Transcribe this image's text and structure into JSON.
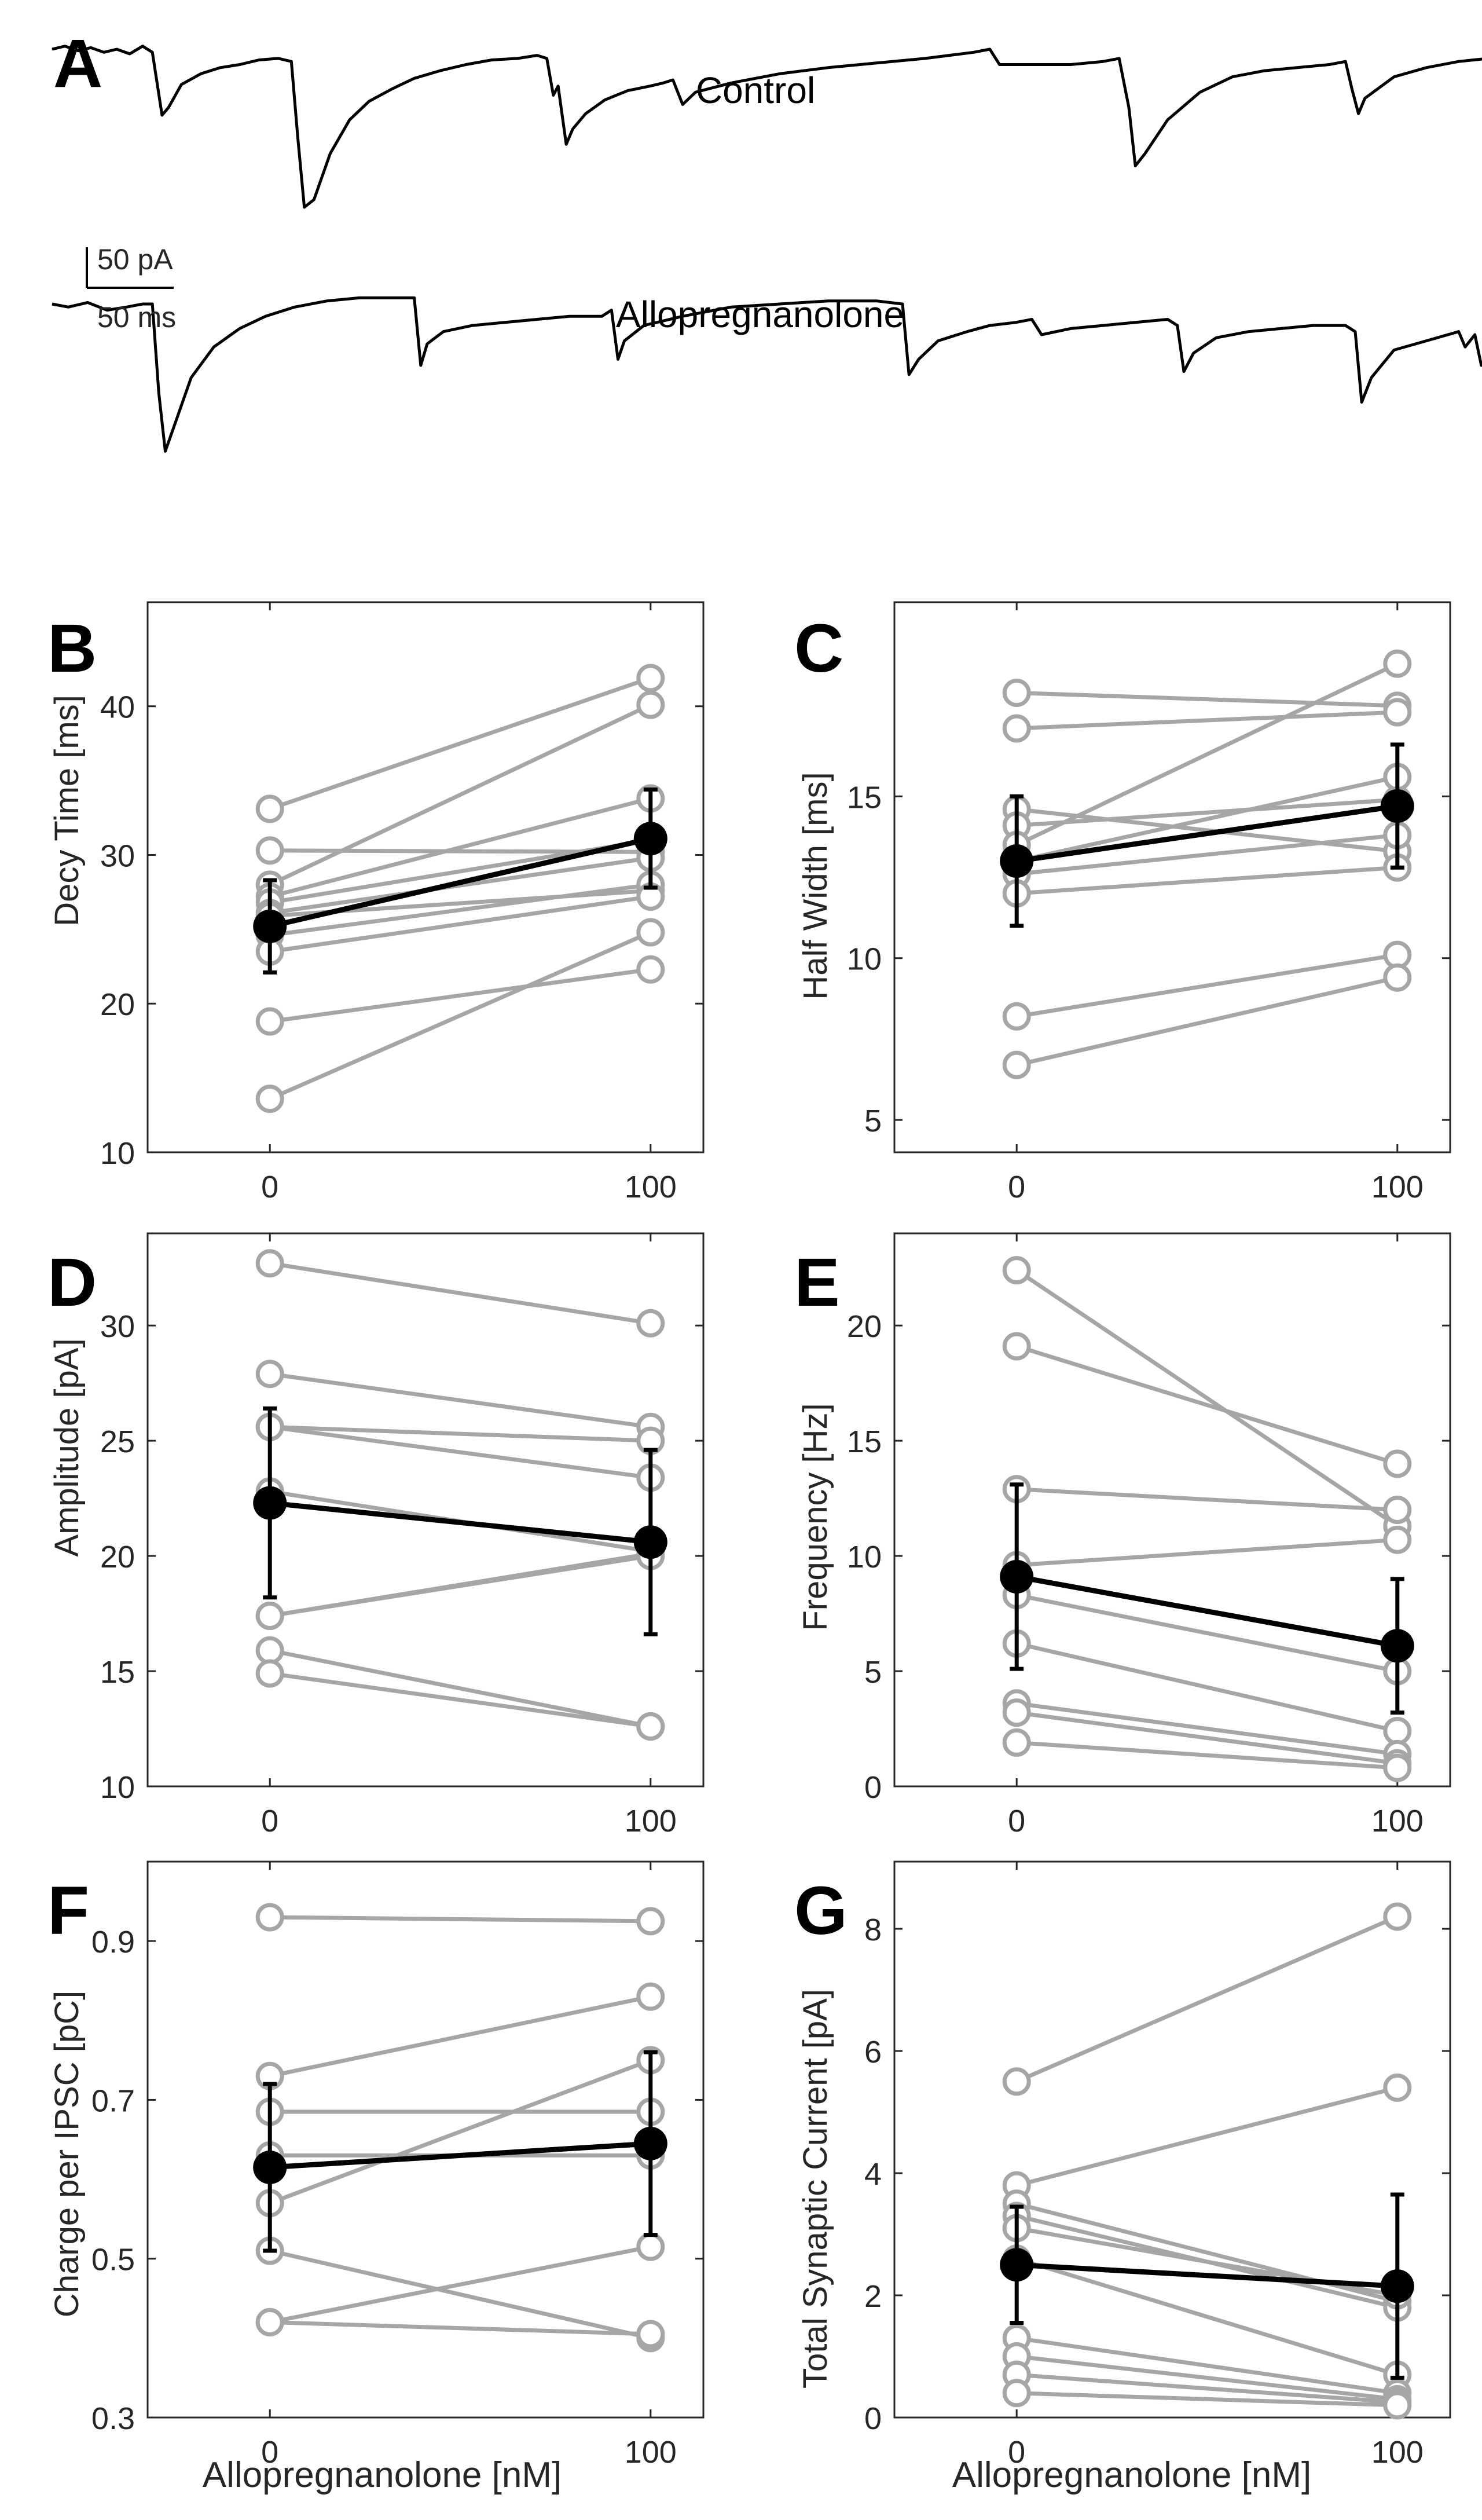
{
  "chart_data": [
    {
      "panel": "A",
      "type": "line",
      "traces": [
        {
          "name": "Control",
          "points": [
            [
              0,
              82
            ],
            [
              8,
              80
            ],
            [
              16,
              83
            ],
            [
              24,
              81
            ],
            [
              32,
              84
            ],
            [
              40,
              82
            ],
            [
              48,
              85
            ],
            [
              56,
              80
            ],
            [
              62,
              84
            ],
            [
              68,
              125
            ],
            [
              72,
              120
            ],
            [
              80,
              105
            ],
            [
              92,
              98
            ],
            [
              104,
              94
            ],
            [
              116,
              92
            ],
            [
              128,
              89
            ],
            [
              140,
              88
            ],
            [
              148,
              90
            ],
            [
              152,
              140
            ],
            [
              156,
              185
            ],
            [
              162,
              180
            ],
            [
              172,
              150
            ],
            [
              184,
              128
            ],
            [
              196,
              116
            ],
            [
              210,
              108
            ],
            [
              224,
              101
            ],
            [
              240,
              96
            ],
            [
              256,
              92
            ],
            [
              272,
              89
            ],
            [
              288,
              88
            ],
            [
              300,
              86
            ],
            [
              306,
              88
            ],
            [
              310,
              112
            ],
            [
              313,
              106
            ],
            [
              318,
              144
            ],
            [
              322,
              134
            ],
            [
              330,
              124
            ],
            [
              342,
              115
            ],
            [
              356,
              109
            ],
            [
              370,
              106
            ],
            [
              378,
              104
            ],
            [
              384,
              102
            ],
            [
              390,
              118
            ],
            [
              398,
              110
            ],
            [
              420,
              104
            ],
            [
              450,
              98
            ],
            [
              480,
              94
            ],
            [
              510,
              91
            ],
            [
              540,
              88
            ],
            [
              570,
              84
            ],
            [
              580,
              82
            ],
            [
              586,
              92
            ],
            [
              600,
              92
            ],
            [
              630,
              92
            ],
            [
              650,
              90
            ],
            [
              660,
              88
            ],
            [
              666,
              120
            ],
            [
              670,
              158
            ],
            [
              676,
              150
            ],
            [
              690,
              128
            ],
            [
              710,
              110
            ],
            [
              730,
              100
            ],
            [
              750,
              96
            ],
            [
              770,
              94
            ],
            [
              790,
              92
            ],
            [
              800,
              90
            ],
            [
              804,
              108
            ],
            [
              808,
              124
            ],
            [
              812,
              114
            ],
            [
              830,
              100
            ],
            [
              850,
              94
            ],
            [
              870,
              90
            ],
            [
              888,
              88
            ]
          ]
        },
        {
          "name": "Allopregnanolone",
          "points": [
            [
              0,
              222
            ],
            [
              10,
              224
            ],
            [
              22,
              221
            ],
            [
              34,
              226
            ],
            [
              46,
              224
            ],
            [
              56,
              222
            ],
            [
              62,
              222
            ],
            [
              66,
              280
            ],
            [
              70,
              318
            ],
            [
              76,
              300
            ],
            [
              86,
              270
            ],
            [
              100,
              250
            ],
            [
              116,
              238
            ],
            [
              132,
              230
            ],
            [
              150,
              224
            ],
            [
              170,
              220
            ],
            [
              190,
              218
            ],
            [
              210,
              218
            ],
            [
              224,
              218
            ],
            [
              228,
              262
            ],
            [
              232,
              248
            ],
            [
              242,
              240
            ],
            [
              260,
              236
            ],
            [
              280,
              234
            ],
            [
              300,
              232
            ],
            [
              320,
              230
            ],
            [
              340,
              230
            ],
            [
              346,
              226
            ],
            [
              350,
              258
            ],
            [
              354,
              246
            ],
            [
              366,
              236
            ],
            [
              390,
              230
            ],
            [
              420,
              224
            ],
            [
              450,
              222
            ],
            [
              480,
              220
            ],
            [
              510,
              220
            ],
            [
              526,
              222
            ],
            [
              530,
              268
            ],
            [
              536,
              258
            ],
            [
              548,
              246
            ],
            [
              566,
              240
            ],
            [
              580,
              236
            ],
            [
              596,
              234
            ],
            [
              606,
              232
            ],
            [
              612,
              242
            ],
            [
              630,
              238
            ],
            [
              650,
              236
            ],
            [
              670,
              234
            ],
            [
              690,
              232
            ],
            [
              696,
              236
            ],
            [
              700,
              266
            ],
            [
              706,
              254
            ],
            [
              720,
              244
            ],
            [
              740,
              240
            ],
            [
              760,
              238
            ],
            [
              780,
              236
            ],
            [
              800,
              236
            ],
            [
              806,
              240
            ],
            [
              810,
              286
            ],
            [
              816,
              270
            ],
            [
              830,
              252
            ],
            [
              850,
              246
            ],
            [
              870,
              240
            ],
            [
              874,
              250
            ],
            [
              880,
              242
            ],
            [
              884,
              262
            ],
            [
              888,
              256
            ]
          ]
        }
      ],
      "title_control": "Control",
      "title_allo": "Allopregnanolone",
      "scalebar_y": "50 pA",
      "scalebar_x": "50 ms"
    },
    {
      "panel": "B",
      "type": "line",
      "xlabel": "",
      "ylabel": "Decy Time [ms]",
      "x_ticks": [
        "0",
        "100"
      ],
      "y_ticks": [
        10,
        20,
        30,
        40
      ],
      "ylim": [
        10,
        47
      ],
      "pairs": [
        [
          33.1,
          41.9
        ],
        [
          30.3,
          30.2
        ],
        [
          28.0,
          40.1
        ],
        [
          27.2,
          33.8
        ],
        [
          26.8,
          31.0
        ],
        [
          26.1,
          29.8
        ],
        [
          25.9,
          27.6
        ],
        [
          24.6,
          28.0
        ],
        [
          23.5,
          27.2
        ],
        [
          18.8,
          22.3
        ],
        [
          13.6,
          24.8
        ]
      ],
      "mean": [
        25.2,
        31.1
      ],
      "sem": [
        3.1,
        3.3
      ]
    },
    {
      "panel": "C",
      "type": "line",
      "xlabel": "",
      "ylabel": "Half Width [ms]",
      "x_ticks": [
        "0",
        "100"
      ],
      "y_ticks": [
        5,
        10,
        15
      ],
      "ylim": [
        4,
        21
      ],
      "pairs": [
        [
          18.2,
          17.8
        ],
        [
          17.1,
          17.6
        ],
        [
          14.6,
          13.3
        ],
        [
          14.1,
          14.9
        ],
        [
          13.5,
          19.1
        ],
        [
          13.0,
          15.6
        ],
        [
          12.6,
          13.8
        ],
        [
          12.0,
          12.8
        ],
        [
          8.2,
          10.1
        ],
        [
          6.7,
          9.4
        ]
      ],
      "mean": [
        13.0,
        14.7
      ],
      "sem": [
        2.0,
        1.9
      ]
    },
    {
      "panel": "D",
      "type": "line",
      "xlabel": "",
      "ylabel": "Amplitude [pA]",
      "x_ticks": [
        "0",
        "100"
      ],
      "y_ticks": [
        10,
        15,
        20,
        25,
        30
      ],
      "ylim": [
        10,
        34
      ],
      "pairs": [
        [
          32.7,
          30.1
        ],
        [
          27.9,
          25.6
        ],
        [
          25.6,
          25.0
        ],
        [
          25.6,
          23.4
        ],
        [
          22.8,
          20.2
        ],
        [
          17.4,
          20.1
        ],
        [
          17.4,
          20.0
        ],
        [
          15.9,
          12.6
        ],
        [
          14.9,
          12.6
        ]
      ],
      "mean": [
        22.3,
        20.6
      ],
      "sem": [
        4.1,
        4.0
      ]
    },
    {
      "panel": "E",
      "type": "line",
      "xlabel": "",
      "ylabel": "Frequency [Hz]",
      "x_ticks": [
        "0",
        "100"
      ],
      "y_ticks": [
        0,
        5,
        10,
        15,
        20
      ],
      "ylim": [
        0,
        24
      ],
      "pairs": [
        [
          22.4,
          11.3
        ],
        [
          19.1,
          14.0
        ],
        [
          12.9,
          12.0
        ],
        [
          9.6,
          10.7
        ],
        [
          8.3,
          5.0
        ],
        [
          6.2,
          2.4
        ],
        [
          3.6,
          1.4
        ],
        [
          3.2,
          1.0
        ],
        [
          1.9,
          0.8
        ]
      ],
      "mean": [
        9.1,
        6.1
      ],
      "sem": [
        4.0,
        2.9
      ]
    },
    {
      "panel": "F",
      "type": "line",
      "xlabel": "Allopregnanolone [nM]",
      "ylabel": "Charge per IPSC [pC]",
      "x_ticks": [
        "0",
        "100"
      ],
      "y_ticks": [
        "0.3",
        "0.5",
        "0.7",
        "0.9"
      ],
      "ylim": [
        0.3,
        1.0
      ],
      "pairs": [
        [
          0.93,
          0.925
        ],
        [
          0.73,
          0.83
        ],
        [
          0.685,
          0.685
        ],
        [
          0.63,
          0.63
        ],
        [
          0.57,
          0.75
        ],
        [
          0.51,
          0.4
        ],
        [
          0.42,
          0.515
        ],
        [
          0.42,
          0.405
        ]
      ],
      "mean": [
        0.615,
        0.645
      ],
      "sem": [
        0.105,
        0.115
      ]
    },
    {
      "panel": "G",
      "type": "line",
      "xlabel": "Allopregnanolone [nM]",
      "ylabel": "Total Synaptic Current [pA]",
      "x_ticks": [
        "0",
        "100"
      ],
      "y_ticks": [
        0,
        2,
        4,
        6,
        8
      ],
      "ylim": [
        0,
        9.1
      ],
      "pairs": [
        [
          5.5,
          8.2
        ],
        [
          3.8,
          5.4
        ],
        [
          3.5,
          1.9
        ],
        [
          3.3,
          1.8
        ],
        [
          3.1,
          2.0
        ],
        [
          2.6,
          0.7
        ],
        [
          1.3,
          0.4
        ],
        [
          1.0,
          0.3
        ],
        [
          0.7,
          0.25
        ],
        [
          0.4,
          0.2
        ]
      ],
      "mean": [
        2.5,
        2.15
      ],
      "sem": [
        0.95,
        1.5
      ]
    }
  ]
}
